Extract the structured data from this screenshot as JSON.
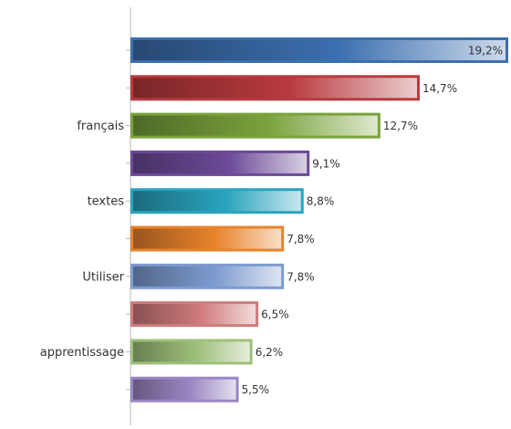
{
  "chart_data": {
    "type": "bar",
    "orientation": "horizontal",
    "categories": [
      "",
      "",
      "français",
      "",
      "textes",
      "",
      "Utiliser",
      "",
      "apprentissage",
      ""
    ],
    "values": [
      19.2,
      14.7,
      12.7,
      9.1,
      8.8,
      7.8,
      7.8,
      6.5,
      6.2,
      5.5
    ],
    "value_labels": [
      "19,2%",
      "14,7%",
      "12,7%",
      "9,1%",
      "8,8%",
      "7,8%",
      "7,8%",
      "6,5%",
      "6,2%",
      "5,5%"
    ],
    "colors": [
      "#3c6faf",
      "#b83a3e",
      "#7aa23c",
      "#6c4a98",
      "#2aa3be",
      "#e8832c",
      "#7d9bd0",
      "#cf7b7b",
      "#9fc07a",
      "#9a86c2"
    ],
    "xlim": [
      0,
      19.2
    ],
    "title": "",
    "xlabel": "",
    "ylabel": "",
    "grid": false,
    "legend": "none"
  }
}
